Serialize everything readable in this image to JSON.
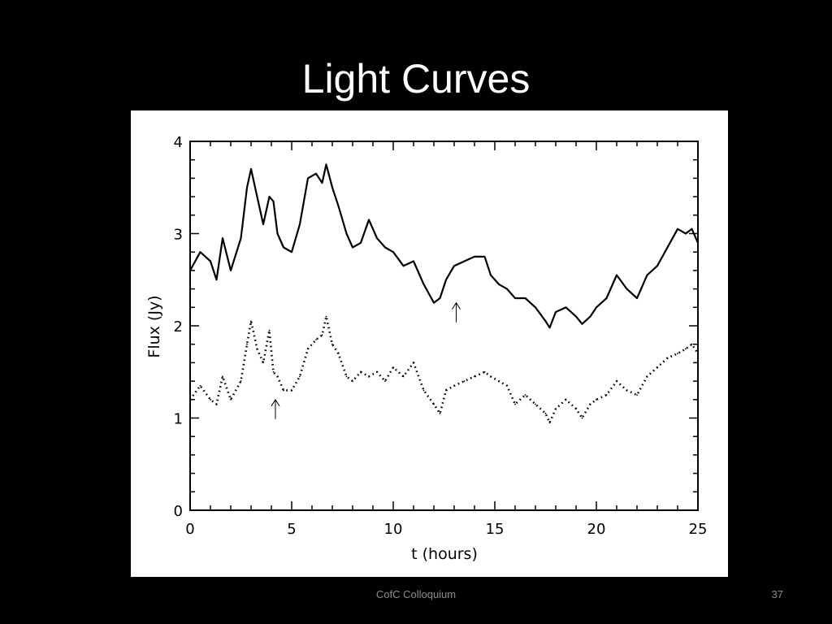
{
  "slide": {
    "title": "Light Curves",
    "footer": "CofC Colloquium",
    "page_number": "37"
  },
  "colors": {
    "background": "#000000",
    "title_text": "#ffffff",
    "footer_text": "#8c8c8c",
    "plot_background": "#ffffff",
    "plot_ink": "#000000"
  },
  "chart_data": {
    "type": "line",
    "xlabel": "t  (hours)",
    "ylabel": "Flux  (Jy)",
    "xlim": [
      0,
      25
    ],
    "ylim": [
      0,
      4
    ],
    "x_ticks": [
      "0",
      "5",
      "10",
      "15",
      "20",
      "25"
    ],
    "y_ticks": [
      "0",
      "1",
      "2",
      "3",
      "4"
    ],
    "grid": false,
    "series": [
      {
        "style": "solid",
        "x": [
          0,
          0.5,
          1,
          1.3,
          1.6,
          2,
          2.5,
          2.8,
          3,
          3.3,
          3.6,
          3.9,
          4.1,
          4.3,
          4.6,
          5,
          5.4,
          5.8,
          6.2,
          6.5,
          6.7,
          7,
          7.3,
          7.7,
          8,
          8.4,
          8.8,
          9.2,
          9.6,
          10,
          10.5,
          11,
          11.5,
          12,
          12.3,
          12.6,
          13,
          13.5,
          14,
          14.5,
          14.8,
          15.2,
          15.6,
          16,
          16.5,
          17,
          17.5,
          17.7,
          18,
          18.5,
          19,
          19.3,
          19.7,
          20,
          20.5,
          21,
          21.5,
          22,
          22.5,
          23,
          23.5,
          24,
          24.4,
          24.7,
          25
        ],
        "y": [
          2.6,
          2.8,
          2.7,
          2.5,
          2.95,
          2.6,
          2.95,
          3.5,
          3.7,
          3.4,
          3.1,
          3.4,
          3.35,
          3.0,
          2.85,
          2.8,
          3.1,
          3.6,
          3.65,
          3.55,
          3.75,
          3.5,
          3.3,
          3.0,
          2.85,
          2.9,
          3.15,
          2.95,
          2.85,
          2.8,
          2.65,
          2.7,
          2.45,
          2.25,
          2.3,
          2.5,
          2.65,
          2.7,
          2.75,
          2.75,
          2.55,
          2.45,
          2.4,
          2.3,
          2.3,
          2.2,
          2.05,
          1.98,
          2.15,
          2.2,
          2.1,
          2.02,
          2.1,
          2.2,
          2.3,
          2.55,
          2.4,
          2.3,
          2.55,
          2.65,
          2.85,
          3.05,
          3.0,
          3.05,
          2.9
        ]
      },
      {
        "style": "dotted",
        "x": [
          0,
          0.5,
          1,
          1.3,
          1.6,
          2,
          2.5,
          2.8,
          3,
          3.3,
          3.6,
          3.9,
          4.1,
          4.3,
          4.6,
          5,
          5.4,
          5.8,
          6.2,
          6.5,
          6.7,
          7,
          7.3,
          7.7,
          8,
          8.4,
          8.8,
          9.2,
          9.6,
          10,
          10.5,
          11,
          11.5,
          12,
          12.3,
          12.6,
          13,
          13.5,
          14,
          14.5,
          14.8,
          15.2,
          15.6,
          16,
          16.5,
          17,
          17.5,
          17.7,
          18,
          18.5,
          19,
          19.3,
          19.7,
          20,
          20.5,
          21,
          21.5,
          22,
          22.5,
          23,
          23.5,
          24,
          24.4,
          24.7,
          25
        ],
        "y": [
          1.2,
          1.35,
          1.2,
          1.15,
          1.45,
          1.2,
          1.4,
          1.8,
          2.05,
          1.75,
          1.6,
          1.95,
          1.5,
          1.45,
          1.3,
          1.3,
          1.45,
          1.75,
          1.85,
          1.9,
          2.1,
          1.8,
          1.7,
          1.45,
          1.4,
          1.5,
          1.45,
          1.5,
          1.4,
          1.55,
          1.45,
          1.6,
          1.3,
          1.15,
          1.05,
          1.3,
          1.35,
          1.4,
          1.45,
          1.5,
          1.45,
          1.4,
          1.35,
          1.15,
          1.25,
          1.15,
          1.05,
          0.95,
          1.1,
          1.2,
          1.1,
          1.0,
          1.15,
          1.2,
          1.25,
          1.4,
          1.3,
          1.25,
          1.45,
          1.55,
          1.65,
          1.7,
          1.75,
          1.8,
          1.7
        ]
      }
    ],
    "annotations": [
      {
        "type": "arrow-up",
        "x": 13.1,
        "y": 2.25
      },
      {
        "type": "arrow-up",
        "x": 4.2,
        "y": 1.2
      }
    ]
  }
}
